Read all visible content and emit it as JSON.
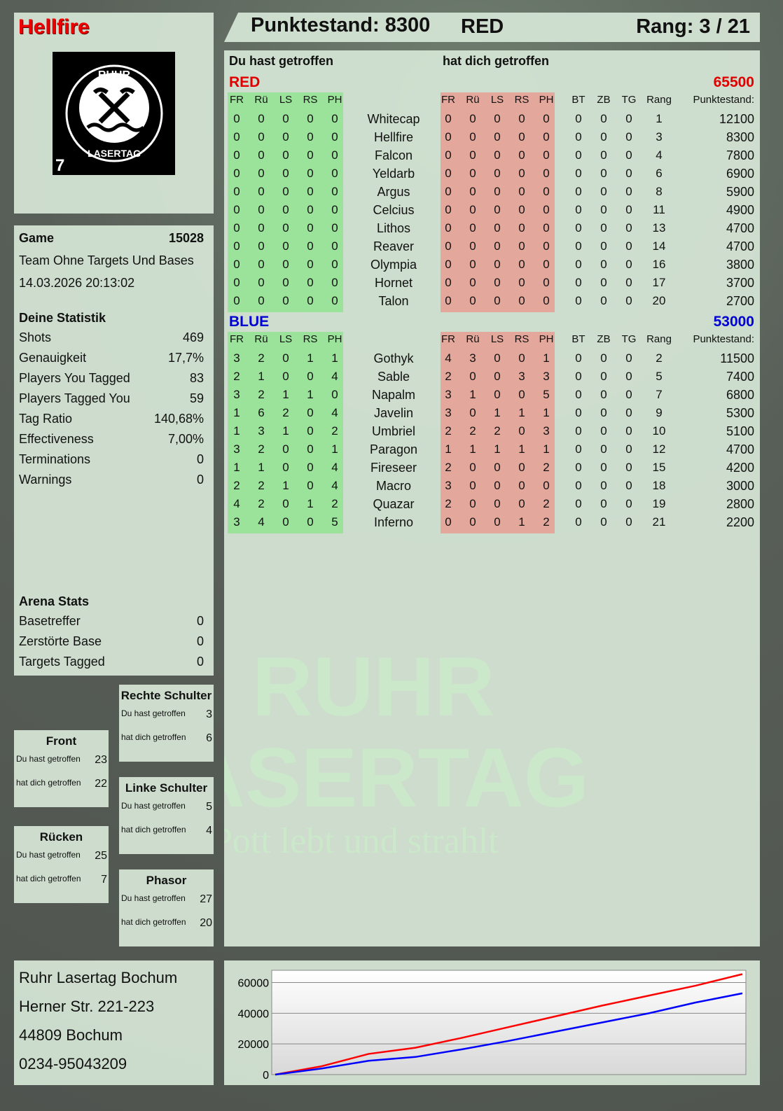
{
  "player": {
    "name": "Hellfire",
    "logo_number": "7",
    "logo_text_top": "RUHR",
    "logo_text_bottom": "LASERTAG"
  },
  "header": {
    "score": "Punktestand: 8300",
    "team": "RED",
    "rank": "Rang: 3 / 21"
  },
  "main": {
    "you_hit": "Du hast getroffen",
    "hit_you": "hat dich getroffen",
    "columns_hit": [
      "FR",
      "Rü",
      "LS",
      "RS",
      "PH"
    ],
    "columns_extra": [
      "BT",
      "ZB",
      "TG",
      "Rang",
      "Punktestand:"
    ],
    "teams": [
      {
        "name": "RED",
        "total": "65500",
        "color": "#e00000",
        "players": [
          {
            "name": "Whitecap",
            "you": [
              0,
              0,
              0,
              0,
              0
            ],
            "them": [
              0,
              0,
              0,
              0,
              0
            ],
            "bt": 0,
            "zb": 0,
            "tg": 0,
            "rank": 1,
            "score": 12100
          },
          {
            "name": "Hellfire",
            "you": [
              0,
              0,
              0,
              0,
              0
            ],
            "them": [
              0,
              0,
              0,
              0,
              0
            ],
            "bt": 0,
            "zb": 0,
            "tg": 0,
            "rank": 3,
            "score": 8300
          },
          {
            "name": "Falcon",
            "you": [
              0,
              0,
              0,
              0,
              0
            ],
            "them": [
              0,
              0,
              0,
              0,
              0
            ],
            "bt": 0,
            "zb": 0,
            "tg": 0,
            "rank": 4,
            "score": 7800
          },
          {
            "name": "Yeldarb",
            "you": [
              0,
              0,
              0,
              0,
              0
            ],
            "them": [
              0,
              0,
              0,
              0,
              0
            ],
            "bt": 0,
            "zb": 0,
            "tg": 0,
            "rank": 6,
            "score": 6900
          },
          {
            "name": "Argus",
            "you": [
              0,
              0,
              0,
              0,
              0
            ],
            "them": [
              0,
              0,
              0,
              0,
              0
            ],
            "bt": 0,
            "zb": 0,
            "tg": 0,
            "rank": 8,
            "score": 5900
          },
          {
            "name": "Celcius",
            "you": [
              0,
              0,
              0,
              0,
              0
            ],
            "them": [
              0,
              0,
              0,
              0,
              0
            ],
            "bt": 0,
            "zb": 0,
            "tg": 0,
            "rank": 11,
            "score": 4900
          },
          {
            "name": "Lithos",
            "you": [
              0,
              0,
              0,
              0,
              0
            ],
            "them": [
              0,
              0,
              0,
              0,
              0
            ],
            "bt": 0,
            "zb": 0,
            "tg": 0,
            "rank": 13,
            "score": 4700
          },
          {
            "name": "Reaver",
            "you": [
              0,
              0,
              0,
              0,
              0
            ],
            "them": [
              0,
              0,
              0,
              0,
              0
            ],
            "bt": 0,
            "zb": 0,
            "tg": 0,
            "rank": 14,
            "score": 4700
          },
          {
            "name": "Olympia",
            "you": [
              0,
              0,
              0,
              0,
              0
            ],
            "them": [
              0,
              0,
              0,
              0,
              0
            ],
            "bt": 0,
            "zb": 0,
            "tg": 0,
            "rank": 16,
            "score": 3800
          },
          {
            "name": "Hornet",
            "you": [
              0,
              0,
              0,
              0,
              0
            ],
            "them": [
              0,
              0,
              0,
              0,
              0
            ],
            "bt": 0,
            "zb": 0,
            "tg": 0,
            "rank": 17,
            "score": 3700
          },
          {
            "name": "Talon",
            "you": [
              0,
              0,
              0,
              0,
              0
            ],
            "them": [
              0,
              0,
              0,
              0,
              0
            ],
            "bt": 0,
            "zb": 0,
            "tg": 0,
            "rank": 20,
            "score": 2700
          }
        ]
      },
      {
        "name": "BLUE",
        "total": "53000",
        "color": "#0000d0",
        "players": [
          {
            "name": "Gothyk",
            "you": [
              3,
              2,
              0,
              1,
              1
            ],
            "them": [
              4,
              3,
              0,
              0,
              1
            ],
            "bt": 0,
            "zb": 0,
            "tg": 0,
            "rank": 2,
            "score": 11500
          },
          {
            "name": "Sable",
            "you": [
              2,
              1,
              0,
              0,
              4
            ],
            "them": [
              2,
              0,
              0,
              3,
              3
            ],
            "bt": 0,
            "zb": 0,
            "tg": 0,
            "rank": 5,
            "score": 7400
          },
          {
            "name": "Napalm",
            "you": [
              3,
              2,
              1,
              1,
              0
            ],
            "them": [
              3,
              1,
              0,
              0,
              5
            ],
            "bt": 0,
            "zb": 0,
            "tg": 0,
            "rank": 7,
            "score": 6800
          },
          {
            "name": "Javelin",
            "you": [
              1,
              6,
              2,
              0,
              4
            ],
            "them": [
              3,
              0,
              1,
              1,
              1
            ],
            "bt": 0,
            "zb": 0,
            "tg": 0,
            "rank": 9,
            "score": 5300
          },
          {
            "name": "Umbriel",
            "you": [
              1,
              3,
              1,
              0,
              2
            ],
            "them": [
              2,
              2,
              2,
              0,
              3
            ],
            "bt": 0,
            "zb": 0,
            "tg": 0,
            "rank": 10,
            "score": 5100
          },
          {
            "name": "Paragon",
            "you": [
              3,
              2,
              0,
              0,
              1
            ],
            "them": [
              1,
              1,
              1,
              1,
              1
            ],
            "bt": 0,
            "zb": 0,
            "tg": 0,
            "rank": 12,
            "score": 4700
          },
          {
            "name": "Fireseer",
            "you": [
              1,
              1,
              0,
              0,
              4
            ],
            "them": [
              2,
              0,
              0,
              0,
              2
            ],
            "bt": 0,
            "zb": 0,
            "tg": 0,
            "rank": 15,
            "score": 4200
          },
          {
            "name": "Macro",
            "you": [
              2,
              2,
              1,
              0,
              4
            ],
            "them": [
              3,
              0,
              0,
              0,
              0
            ],
            "bt": 0,
            "zb": 0,
            "tg": 0,
            "rank": 18,
            "score": 3000
          },
          {
            "name": "Quazar",
            "you": [
              4,
              2,
              0,
              1,
              2
            ],
            "them": [
              2,
              0,
              0,
              0,
              2
            ],
            "bt": 0,
            "zb": 0,
            "tg": 0,
            "rank": 19,
            "score": 2800
          },
          {
            "name": "Inferno",
            "you": [
              3,
              4,
              0,
              0,
              5
            ],
            "them": [
              0,
              0,
              0,
              1,
              2
            ],
            "bt": 0,
            "zb": 0,
            "tg": 0,
            "rank": 21,
            "score": 2200
          }
        ]
      }
    ]
  },
  "game": {
    "label": "Game",
    "id": "15028",
    "mode": "Team Ohne Targets Und Bases",
    "datetime": "14.03.2026 20:13:02"
  },
  "stats": {
    "title": "Deine Statistik",
    "items": [
      {
        "label": "Shots",
        "value": "469"
      },
      {
        "label": "Genauigkeit",
        "value": "17,7%"
      },
      {
        "label": "Players You Tagged",
        "value": "83"
      },
      {
        "label": "Players Tagged You",
        "value": "59"
      },
      {
        "label": "Tag Ratio",
        "value": "140,68%"
      },
      {
        "label": "Effectiveness",
        "value": "7,00%"
      },
      {
        "label": "Terminations",
        "value": "0"
      },
      {
        "label": "Warnings",
        "value": "0"
      }
    ]
  },
  "arena": {
    "title": "Arena Stats",
    "items": [
      {
        "label": "Basetreffer",
        "value": "0"
      },
      {
        "label": "Zerstörte Base",
        "value": "0"
      },
      {
        "label": "Targets Tagged",
        "value": "0"
      }
    ]
  },
  "zones": [
    {
      "title": "Rechte Schulter",
      "you_label": "Du hast getroffen",
      "you": "3",
      "them_label": "hat dich getroffen",
      "them": "6"
    },
    {
      "title": "Front",
      "you_label": "Du hast getroffen",
      "you": "23",
      "them_label": "hat dich getroffen",
      "them": "22"
    },
    {
      "title": "Linke Schulter",
      "you_label": "Du hast getroffen",
      "you": "5",
      "them_label": "hat dich getroffen",
      "them": "4"
    },
    {
      "title": "Rücken",
      "you_label": "Du hast getroffen",
      "you": "25",
      "them_label": "hat dich getroffen",
      "them": "7"
    },
    {
      "title": "Phasor",
      "you_label": "Du hast getroffen",
      "you": "27",
      "them_label": "hat dich getroffen",
      "them": "20"
    }
  ],
  "address": {
    "lines": [
      "Ruhr Lasertag Bochum",
      "Herner Str. 221-223",
      "44809 Bochum",
      "0234-95043209"
    ]
  },
  "watermark": {
    "line1": "RUHR",
    "line2": "LASERTAG",
    "slogan": "Der Pott lebt und strahlt"
  },
  "colors": {
    "you_hit_bg": "#9be39b",
    "hit_you_bg": "#e3a79b",
    "red": "#e00000",
    "blue": "#0000d0"
  },
  "chart_data": {
    "type": "line",
    "title": "",
    "xlabel": "",
    "ylabel": "",
    "ylim": [
      0,
      68000
    ],
    "yticks": [
      0,
      20000,
      40000,
      60000
    ],
    "yticklabels": [
      "0",
      "20000",
      "40000",
      "60000"
    ],
    "grid": true,
    "x": [
      0,
      1,
      2,
      3,
      4,
      5,
      6,
      7,
      8,
      9,
      10
    ],
    "series": [
      {
        "color": "#ff0000",
        "values": [
          0,
          5500,
          13500,
          17500,
          24000,
          31000,
          38000,
          45000,
          51500,
          58000,
          65500
        ]
      },
      {
        "color": "#0000ff",
        "values": [
          0,
          4000,
          9000,
          11500,
          16500,
          22000,
          28000,
          34000,
          40000,
          47000,
          53000
        ]
      }
    ]
  }
}
